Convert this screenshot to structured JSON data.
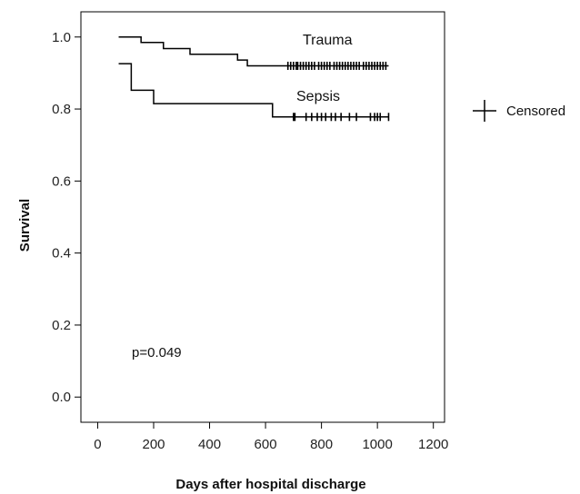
{
  "chart_data": {
    "type": "line",
    "chart_kind": "kaplan-meier survival curve",
    "xlabel": "Days after hospital discharge",
    "ylabel": "Survival",
    "xlim": [
      -60,
      1240
    ],
    "ylim": [
      -0.07,
      1.07
    ],
    "x_ticks": [
      "0",
      "200",
      "400",
      "600",
      "800",
      "1000",
      "1200"
    ],
    "y_ticks": [
      "0.0",
      "0.2",
      "0.4",
      "0.6",
      "0.8",
      "1.0"
    ],
    "annotation": "p=0.049",
    "legend": {
      "label": "Censored",
      "placement": "right",
      "marker": "plus"
    },
    "series": [
      {
        "name": "Trauma",
        "steps": [
          [
            75,
            1.0
          ],
          [
            155,
            0.985
          ],
          [
            235,
            0.968
          ],
          [
            330,
            0.952
          ],
          [
            500,
            0.936
          ],
          [
            535,
            0.92
          ],
          [
            1040,
            0.92
          ]
        ],
        "censored_x": [
          680,
          690,
          700,
          710,
          715,
          725,
          735,
          745,
          755,
          765,
          775,
          790,
          800,
          810,
          820,
          830,
          845,
          855,
          865,
          875,
          885,
          895,
          905,
          915,
          925,
          935,
          950,
          960,
          970,
          980,
          990,
          1000,
          1010,
          1020,
          1030
        ],
        "censored_y": 0.92
      },
      {
        "name": "Sepsis",
        "steps": [
          [
            75,
            0.926
          ],
          [
            120,
            0.852
          ],
          [
            200,
            0.815
          ],
          [
            625,
            0.778
          ],
          [
            1040,
            0.778
          ]
        ],
        "censored_x": [
          700,
          705,
          745,
          765,
          785,
          800,
          815,
          835,
          850,
          870,
          900,
          925,
          975,
          990,
          1000,
          1010,
          1040
        ],
        "censored_y": 0.778
      }
    ]
  }
}
